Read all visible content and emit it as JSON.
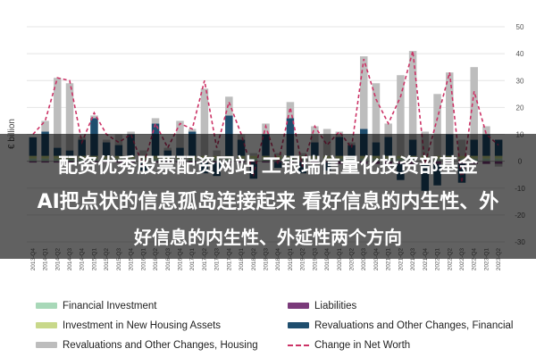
{
  "overlay": {
    "line1": "配资优秀股票配资网站 工银瑞信量化投资部基金",
    "line2": "AI把点状的信息孤岛连接起来 看好信息的内生性、外",
    "line3": "好信息的内生性、外延性两个方向"
  },
  "chart_data": {
    "type": "bar",
    "ylabel": "€ billion",
    "ylim": [
      -30,
      50
    ],
    "yticks": [
      -30,
      -20,
      -10,
      0,
      10,
      20,
      30,
      40,
      50
    ],
    "grid": true,
    "legend_position": "bottom",
    "categories": [
      "2013-Q4",
      "2014-Q1",
      "2014-Q2",
      "2014-Q3",
      "2014-Q4",
      "2015-Q1",
      "2015-Q2",
      "2015-Q3",
      "2015-Q4",
      "2016-Q1",
      "2016-Q2",
      "2016-Q3",
      "2016-Q4",
      "2017-Q1",
      "2017-Q2",
      "2017-Q3",
      "2017-Q4",
      "2018-Q1",
      "2018-Q2",
      "2018-Q3",
      "2018-Q4",
      "2019-Q1",
      "2019-Q2",
      "2019-Q3",
      "2019-Q4",
      "2020-Q1",
      "2020-Q2",
      "2020-Q3",
      "2020-Q4",
      "2021-Q1",
      "2021-Q2",
      "2021-Q3",
      "2021-Q4",
      "2022-Q1",
      "2022-Q2",
      "2022-Q3",
      "2022-Q4",
      "2023-Q1",
      "2023-Q2"
    ],
    "series": [
      {
        "name": "Financial Investment",
        "color": "#a8d8b8",
        "values": [
          1,
          1,
          1,
          1,
          1,
          1,
          1,
          1,
          1,
          1,
          1,
          1,
          1,
          1,
          1,
          1,
          1,
          1,
          1,
          1,
          1,
          1,
          1,
          1,
          1,
          1,
          1,
          1,
          1,
          1,
          1,
          1,
          1,
          1,
          1,
          1,
          1,
          1,
          1
        ]
      },
      {
        "name": "Liabilities",
        "color": "#7a3a7a",
        "values": [
          -0.5,
          -0.5,
          -0.5,
          -0.5,
          -0.5,
          -0.5,
          -0.5,
          -0.5,
          -0.5,
          -0.5,
          -0.5,
          -0.5,
          -0.5,
          -0.5,
          -0.5,
          -0.5,
          -0.5,
          -0.5,
          -0.5,
          -0.5,
          -0.5,
          -0.5,
          -0.5,
          -0.5,
          -0.5,
          -1,
          -1,
          -1,
          -1,
          -1,
          -1,
          -1,
          -1,
          -1,
          -1,
          -1,
          -1,
          -1,
          -1
        ]
      },
      {
        "name": "Investment in New Housing Assets",
        "color": "#c8d88a",
        "values": [
          1,
          1,
          1,
          1,
          1,
          1,
          1,
          1,
          1,
          1,
          1,
          1,
          1,
          1,
          1,
          1,
          1,
          1,
          1,
          1,
          1,
          1,
          1,
          1,
          1,
          1,
          1,
          1,
          1,
          1,
          1,
          1,
          1,
          1,
          1,
          1,
          1,
          1,
          1
        ]
      },
      {
        "name": "Revaluations and Other Changes, Financial",
        "color": "#1f4e6e",
        "values": [
          7,
          9,
          3,
          2,
          6,
          14,
          5,
          4,
          8,
          -3,
          12,
          2,
          3,
          9,
          -4,
          -5,
          15,
          6,
          -6,
          8,
          -2,
          14,
          -4,
          5,
          -3,
          7,
          4,
          10,
          5,
          7,
          -6,
          6,
          -10,
          -8,
          8,
          -7,
          6,
          8,
          6
        ]
      },
      {
        "name": "Revaluations and Other Changes, Housing",
        "color": "#bdbdbd",
        "values": [
          0,
          4,
          26,
          25,
          1,
          1,
          1,
          4,
          1,
          2,
          2,
          1,
          10,
          1,
          25,
          2,
          7,
          2,
          1,
          4,
          1,
          6,
          1,
          6,
          10,
          2,
          1,
          27,
          22,
          5,
          30,
          33,
          9,
          23,
          23,
          6,
          27,
          3,
          -1
        ]
      }
    ],
    "line_series": {
      "name": "Change in Net Worth",
      "color": "#cc3366",
      "style": "dashed",
      "values": [
        10,
        15,
        31,
        30,
        7,
        18,
        10,
        7,
        10,
        -2,
        14,
        5,
        14,
        12,
        30,
        5,
        22,
        10,
        -5,
        13,
        -1,
        20,
        -2,
        13,
        6,
        11,
        5,
        38,
        23,
        14,
        24,
        41,
        -1,
        16,
        33,
        -8,
        26,
        10,
        6
      ]
    }
  }
}
